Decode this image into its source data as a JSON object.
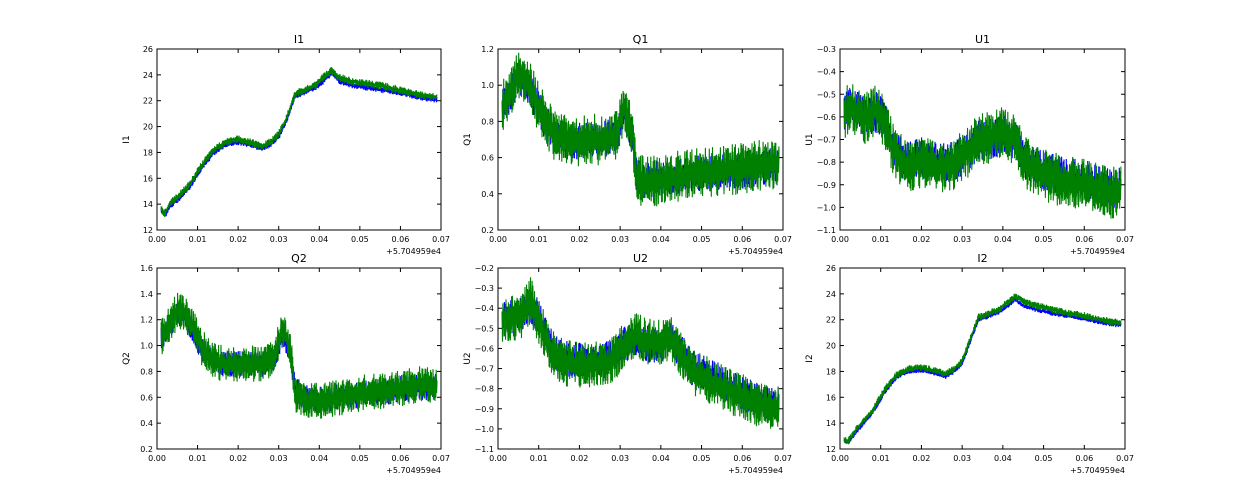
{
  "chart_data": [
    {
      "type": "line",
      "title": "I1",
      "ylabel": "I1",
      "x_offset_label": "+5.704959e4",
      "xlim": [
        0.0,
        0.07
      ],
      "ylim": [
        12,
        26
      ],
      "x_ticks": [
        "0.00",
        "0.01",
        "0.02",
        "0.03",
        "0.04",
        "0.05",
        "0.06",
        "0.07"
      ],
      "y_ticks": [
        "12",
        "14",
        "16",
        "18",
        "20",
        "22",
        "24",
        "26"
      ],
      "series": [
        {
          "color": "#0000ff",
          "noise": 0.18,
          "x": [
            0.001,
            0.002,
            0.003,
            0.005,
            0.008,
            0.011,
            0.014,
            0.017,
            0.02,
            0.023,
            0.026,
            0.028,
            0.03,
            0.032,
            0.034,
            0.036,
            0.039,
            0.041,
            0.043,
            0.045,
            0.048,
            0.052,
            0.056,
            0.06,
            0.064,
            0.068,
            0.069
          ],
          "y": [
            13.5,
            13.1,
            13.8,
            14.3,
            15.3,
            16.8,
            18.0,
            18.6,
            18.8,
            18.6,
            18.3,
            18.6,
            19.2,
            20.5,
            22.3,
            22.6,
            23.0,
            23.5,
            24.1,
            23.5,
            23.2,
            23.0,
            22.8,
            22.6,
            22.3,
            22.1,
            22.1
          ]
        },
        {
          "color": "#008000",
          "noise": 0.25,
          "x": [
            0.001,
            0.002,
            0.003,
            0.005,
            0.008,
            0.011,
            0.014,
            0.017,
            0.02,
            0.023,
            0.026,
            0.028,
            0.03,
            0.032,
            0.034,
            0.036,
            0.039,
            0.041,
            0.043,
            0.045,
            0.048,
            0.052,
            0.056,
            0.06,
            0.064,
            0.068,
            0.069
          ],
          "y": [
            13.6,
            13.3,
            14.0,
            14.5,
            15.5,
            17.0,
            18.2,
            18.8,
            19.0,
            18.8,
            18.5,
            18.8,
            19.4,
            20.7,
            22.5,
            22.8,
            23.2,
            23.8,
            24.3,
            23.8,
            23.5,
            23.3,
            23.1,
            22.8,
            22.5,
            22.3,
            22.3
          ]
        }
      ]
    },
    {
      "type": "line",
      "title": "Q1",
      "ylabel": "Q1",
      "x_offset_label": "+5.704959e4",
      "xlim": [
        0.0,
        0.07
      ],
      "ylim": [
        0.2,
        1.2
      ],
      "x_ticks": [
        "0.00",
        "0.01",
        "0.02",
        "0.03",
        "0.04",
        "0.05",
        "0.06",
        "0.07"
      ],
      "y_ticks": [
        "0.2",
        "0.4",
        "0.6",
        "0.8",
        "1.0",
        "1.2"
      ],
      "series": [
        {
          "color": "#0000ff",
          "noise": 0.08,
          "x": [
            0.001,
            0.003,
            0.005,
            0.007,
            0.009,
            0.011,
            0.014,
            0.018,
            0.022,
            0.026,
            0.029,
            0.031,
            0.033,
            0.034,
            0.036,
            0.04,
            0.045,
            0.05,
            0.055,
            0.06,
            0.065,
            0.069
          ],
          "y": [
            0.88,
            0.95,
            1.05,
            1.02,
            0.92,
            0.82,
            0.72,
            0.68,
            0.7,
            0.7,
            0.72,
            0.85,
            0.72,
            0.5,
            0.48,
            0.48,
            0.5,
            0.52,
            0.52,
            0.53,
            0.55,
            0.55
          ]
        },
        {
          "color": "#008000",
          "noise": 0.11,
          "x": [
            0.001,
            0.003,
            0.005,
            0.007,
            0.009,
            0.011,
            0.014,
            0.018,
            0.022,
            0.026,
            0.029,
            0.031,
            0.033,
            0.034,
            0.036,
            0.04,
            0.045,
            0.05,
            0.055,
            0.06,
            0.065,
            0.069
          ],
          "y": [
            0.88,
            0.96,
            1.06,
            1.03,
            0.93,
            0.83,
            0.72,
            0.68,
            0.7,
            0.7,
            0.72,
            0.88,
            0.74,
            0.48,
            0.47,
            0.47,
            0.5,
            0.52,
            0.53,
            0.54,
            0.56,
            0.56
          ]
        }
      ]
    },
    {
      "type": "line",
      "title": "U1",
      "ylabel": "U1",
      "x_offset_label": "+5.704959e4",
      "xlim": [
        0.0,
        0.07
      ],
      "ylim": [
        -1.1,
        -0.3
      ],
      "x_ticks": [
        "0.00",
        "0.01",
        "0.02",
        "0.03",
        "0.04",
        "0.05",
        "0.06",
        "0.07"
      ],
      "y_ticks": [
        "−1.1",
        "−1.0",
        "−0.9",
        "−0.8",
        "−0.7",
        "−0.6",
        "−0.5",
        "−0.4",
        "−0.3"
      ],
      "series": [
        {
          "color": "#0000ff",
          "noise": 0.07,
          "x": [
            0.001,
            0.003,
            0.006,
            0.009,
            0.011,
            0.013,
            0.016,
            0.02,
            0.024,
            0.028,
            0.031,
            0.034,
            0.037,
            0.04,
            0.043,
            0.045,
            0.048,
            0.052,
            0.056,
            0.06,
            0.064,
            0.068,
            0.069
          ],
          "y": [
            -0.57,
            -0.55,
            -0.6,
            -0.58,
            -0.62,
            -0.72,
            -0.8,
            -0.78,
            -0.8,
            -0.8,
            -0.76,
            -0.7,
            -0.7,
            -0.68,
            -0.7,
            -0.78,
            -0.82,
            -0.85,
            -0.87,
            -0.88,
            -0.9,
            -0.92,
            -0.9
          ]
        },
        {
          "color": "#008000",
          "noise": 0.09,
          "x": [
            0.001,
            0.003,
            0.006,
            0.009,
            0.011,
            0.013,
            0.016,
            0.02,
            0.024,
            0.028,
            0.031,
            0.034,
            0.037,
            0.04,
            0.043,
            0.045,
            0.048,
            0.052,
            0.056,
            0.06,
            0.064,
            0.068,
            0.069
          ],
          "y": [
            -0.58,
            -0.56,
            -0.61,
            -0.57,
            -0.63,
            -0.74,
            -0.82,
            -0.8,
            -0.82,
            -0.81,
            -0.76,
            -0.7,
            -0.69,
            -0.67,
            -0.7,
            -0.79,
            -0.84,
            -0.87,
            -0.89,
            -0.9,
            -0.92,
            -0.94,
            -0.92
          ]
        }
      ]
    },
    {
      "type": "line",
      "title": "Q2",
      "ylabel": "Q2",
      "x_offset_label": "+5.704959e4",
      "xlim": [
        0.0,
        0.07
      ],
      "ylim": [
        0.2,
        1.6
      ],
      "x_ticks": [
        "0.00",
        "0.01",
        "0.02",
        "0.03",
        "0.04",
        "0.05",
        "0.06",
        "0.07"
      ],
      "y_ticks": [
        "0.2",
        "0.4",
        "0.6",
        "0.8",
        "1.0",
        "1.2",
        "1.4",
        "1.6"
      ],
      "series": [
        {
          "color": "#0000ff",
          "noise": 0.08,
          "x": [
            0.001,
            0.003,
            0.005,
            0.007,
            0.009,
            0.011,
            0.014,
            0.018,
            0.022,
            0.026,
            0.029,
            0.031,
            0.033,
            0.034,
            0.036,
            0.04,
            0.045,
            0.05,
            0.055,
            0.06,
            0.065,
            0.069
          ],
          "y": [
            1.05,
            1.15,
            1.25,
            1.22,
            1.12,
            0.98,
            0.88,
            0.85,
            0.86,
            0.86,
            0.9,
            1.1,
            0.92,
            0.66,
            0.6,
            0.58,
            0.6,
            0.62,
            0.64,
            0.66,
            0.68,
            0.68
          ]
        },
        {
          "color": "#008000",
          "noise": 0.11,
          "x": [
            0.001,
            0.003,
            0.005,
            0.007,
            0.009,
            0.011,
            0.014,
            0.018,
            0.022,
            0.026,
            0.029,
            0.031,
            0.033,
            0.034,
            0.036,
            0.04,
            0.045,
            0.05,
            0.055,
            0.06,
            0.065,
            0.069
          ],
          "y": [
            1.06,
            1.17,
            1.27,
            1.24,
            1.13,
            0.99,
            0.88,
            0.85,
            0.86,
            0.86,
            0.91,
            1.15,
            0.94,
            0.62,
            0.58,
            0.57,
            0.6,
            0.63,
            0.65,
            0.67,
            0.7,
            0.7
          ]
        }
      ]
    },
    {
      "type": "line",
      "title": "U2",
      "ylabel": "U2",
      "x_offset_label": "+5.704959e4",
      "xlim": [
        0.0,
        0.07
      ],
      "ylim": [
        -1.1,
        -0.2
      ],
      "x_ticks": [
        "0.00",
        "0.01",
        "0.02",
        "0.03",
        "0.04",
        "0.05",
        "0.06",
        "0.07"
      ],
      "y_ticks": [
        "−1.1",
        "−1.0",
        "−0.9",
        "−0.8",
        "−0.7",
        "−0.6",
        "−0.5",
        "−0.4",
        "−0.3",
        "−0.2"
      ],
      "series": [
        {
          "color": "#0000ff",
          "noise": 0.07,
          "x": [
            0.001,
            0.003,
            0.006,
            0.008,
            0.01,
            0.012,
            0.014,
            0.016,
            0.02,
            0.024,
            0.028,
            0.031,
            0.034,
            0.037,
            0.04,
            0.042,
            0.045,
            0.048,
            0.052,
            0.056,
            0.06,
            0.064,
            0.068,
            0.069
          ],
          "y": [
            -0.45,
            -0.45,
            -0.42,
            -0.38,
            -0.45,
            -0.55,
            -0.62,
            -0.65,
            -0.66,
            -0.66,
            -0.65,
            -0.58,
            -0.55,
            -0.58,
            -0.58,
            -0.55,
            -0.62,
            -0.7,
            -0.74,
            -0.78,
            -0.82,
            -0.86,
            -0.88,
            -0.88
          ]
        },
        {
          "color": "#008000",
          "noise": 0.09,
          "x": [
            0.001,
            0.003,
            0.006,
            0.008,
            0.01,
            0.012,
            0.014,
            0.016,
            0.02,
            0.024,
            0.028,
            0.031,
            0.034,
            0.037,
            0.04,
            0.042,
            0.045,
            0.048,
            0.052,
            0.056,
            0.06,
            0.064,
            0.068,
            0.069
          ],
          "y": [
            -0.46,
            -0.46,
            -0.43,
            -0.36,
            -0.46,
            -0.57,
            -0.64,
            -0.67,
            -0.68,
            -0.68,
            -0.66,
            -0.58,
            -0.54,
            -0.57,
            -0.57,
            -0.54,
            -0.64,
            -0.72,
            -0.76,
            -0.8,
            -0.84,
            -0.88,
            -0.9,
            -0.9
          ]
        }
      ]
    },
    {
      "type": "line",
      "title": "I2",
      "ylabel": "I2",
      "x_offset_label": "+5.704959e4",
      "xlim": [
        0.0,
        0.07
      ],
      "ylim": [
        12,
        26
      ],
      "x_ticks": [
        "0.00",
        "0.01",
        "0.02",
        "0.03",
        "0.04",
        "0.05",
        "0.06",
        "0.07"
      ],
      "y_ticks": [
        "12",
        "14",
        "16",
        "18",
        "20",
        "22",
        "24",
        "26"
      ],
      "series": [
        {
          "color": "#0000ff",
          "noise": 0.15,
          "x": [
            0.001,
            0.002,
            0.003,
            0.005,
            0.008,
            0.011,
            0.014,
            0.017,
            0.02,
            0.023,
            0.026,
            0.028,
            0.03,
            0.032,
            0.034,
            0.036,
            0.039,
            0.041,
            0.043,
            0.045,
            0.048,
            0.052,
            0.056,
            0.06,
            0.064,
            0.068,
            0.069
          ],
          "y": [
            12.6,
            12.5,
            12.9,
            13.7,
            14.8,
            16.4,
            17.6,
            18.0,
            18.1,
            17.9,
            17.6,
            18.0,
            18.6,
            20.3,
            22.0,
            22.2,
            22.6,
            23.0,
            23.6,
            23.1,
            22.8,
            22.5,
            22.3,
            22.1,
            21.8,
            21.6,
            21.6
          ]
        },
        {
          "color": "#008000",
          "noise": 0.22,
          "x": [
            0.001,
            0.002,
            0.003,
            0.005,
            0.008,
            0.011,
            0.014,
            0.017,
            0.02,
            0.023,
            0.026,
            0.028,
            0.03,
            0.032,
            0.034,
            0.036,
            0.039,
            0.041,
            0.043,
            0.045,
            0.048,
            0.052,
            0.056,
            0.06,
            0.064,
            0.068,
            0.069
          ],
          "y": [
            12.7,
            12.6,
            13.1,
            13.9,
            15.0,
            16.6,
            17.8,
            18.2,
            18.3,
            18.1,
            17.8,
            18.2,
            18.8,
            20.5,
            22.2,
            22.4,
            22.8,
            23.3,
            23.8,
            23.4,
            23.1,
            22.8,
            22.5,
            22.3,
            22.0,
            21.8,
            21.8
          ]
        }
      ]
    }
  ]
}
